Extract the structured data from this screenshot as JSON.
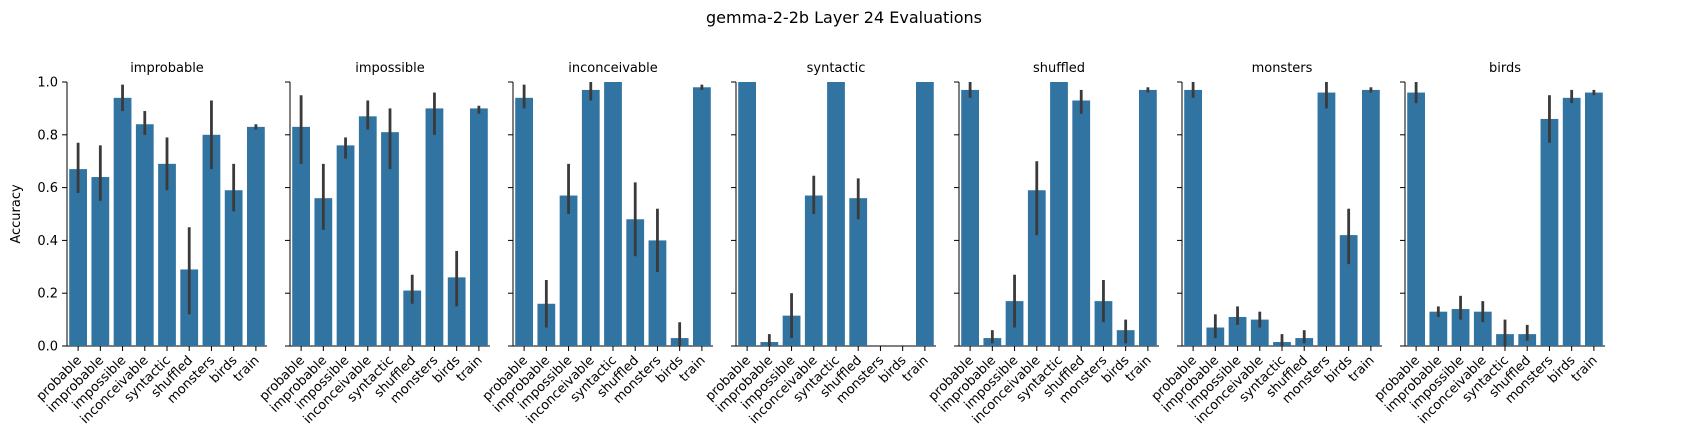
{
  "title": "gemma-2-2b Layer 24 Evaluations",
  "chart_data": {
    "type": "bar",
    "ylabel": "Accuracy",
    "ylim": [
      0,
      1.0
    ],
    "yticks": [
      0.0,
      0.2,
      0.4,
      0.6,
      0.8,
      1.0
    ],
    "ytick_labels": [
      "0.0",
      "0.2",
      "0.4",
      "0.6",
      "0.8",
      "1.0"
    ],
    "bar_color": "#3274a1",
    "error_color": "#3a3a3a",
    "categories": [
      "probable",
      "improbable",
      "impossible",
      "inconceivable",
      "syntactic",
      "shuffled",
      "monsters",
      "birds",
      "train"
    ],
    "panels": [
      {
        "title": "improbable",
        "values": [
          0.67,
          0.64,
          0.94,
          0.84,
          0.69,
          0.29,
          0.8,
          0.59,
          0.83
        ],
        "err_low": [
          0.58,
          0.55,
          0.89,
          0.8,
          0.59,
          0.12,
          0.67,
          0.51,
          0.82
        ],
        "err_high": [
          0.77,
          0.76,
          0.99,
          0.89,
          0.79,
          0.45,
          0.93,
          0.69,
          0.84
        ]
      },
      {
        "title": "impossible",
        "values": [
          0.83,
          0.56,
          0.76,
          0.87,
          0.81,
          0.21,
          0.9,
          0.26,
          0.9
        ],
        "err_low": [
          0.69,
          0.44,
          0.71,
          0.82,
          0.67,
          0.16,
          0.8,
          0.15,
          0.88
        ],
        "err_high": [
          0.95,
          0.69,
          0.79,
          0.93,
          0.9,
          0.27,
          0.96,
          0.36,
          0.91
        ]
      },
      {
        "title": "inconceivable",
        "values": [
          0.94,
          0.16,
          0.57,
          0.97,
          1.0,
          0.48,
          0.4,
          0.03,
          0.98
        ],
        "err_low": [
          0.9,
          0.07,
          0.5,
          0.93,
          1.0,
          0.34,
          0.28,
          0.0,
          0.97
        ],
        "err_high": [
          0.99,
          0.25,
          0.69,
          1.0,
          1.0,
          0.62,
          0.52,
          0.09,
          0.99
        ]
      },
      {
        "title": "syntactic",
        "values": [
          1.0,
          0.015,
          0.115,
          0.57,
          1.0,
          0.56,
          0.0,
          0.0,
          1.0
        ],
        "err_low": [
          1.0,
          0.0,
          0.03,
          0.5,
          1.0,
          0.48,
          0.0,
          0.0,
          1.0
        ],
        "err_high": [
          1.0,
          0.045,
          0.2,
          0.645,
          1.0,
          0.635,
          0.0,
          0.0,
          1.0
        ]
      },
      {
        "title": "shuffled",
        "values": [
          0.97,
          0.03,
          0.17,
          0.59,
          1.0,
          0.93,
          0.17,
          0.06,
          0.97
        ],
        "err_low": [
          0.94,
          0.01,
          0.07,
          0.42,
          1.0,
          0.88,
          0.09,
          0.01,
          0.96
        ],
        "err_high": [
          1.0,
          0.06,
          0.27,
          0.7,
          1.0,
          0.97,
          0.25,
          0.1,
          0.98
        ]
      },
      {
        "title": "monsters",
        "values": [
          0.97,
          0.07,
          0.11,
          0.1,
          0.015,
          0.03,
          0.96,
          0.42,
          0.97
        ],
        "err_low": [
          0.94,
          0.03,
          0.08,
          0.07,
          0.0,
          0.01,
          0.9,
          0.31,
          0.96
        ],
        "err_high": [
          1.0,
          0.12,
          0.15,
          0.13,
          0.045,
          0.06,
          1.0,
          0.52,
          0.98
        ]
      },
      {
        "title": "birds",
        "values": [
          0.96,
          0.13,
          0.14,
          0.13,
          0.045,
          0.045,
          0.86,
          0.94,
          0.96
        ],
        "err_low": [
          0.92,
          0.11,
          0.1,
          0.09,
          0.0,
          0.02,
          0.77,
          0.92,
          0.95
        ],
        "err_high": [
          1.0,
          0.15,
          0.19,
          0.17,
          0.1,
          0.08,
          0.95,
          0.97,
          0.97
        ]
      }
    ]
  }
}
